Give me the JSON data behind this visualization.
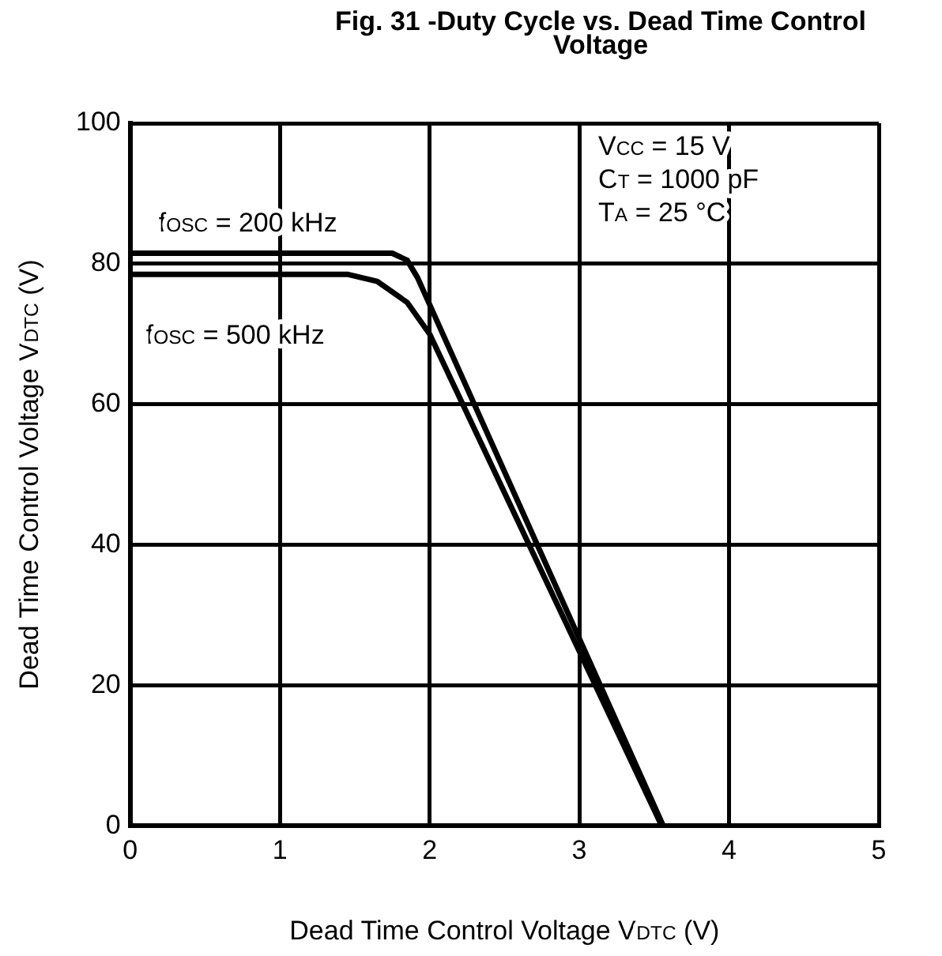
{
  "chart_data": {
    "type": "line",
    "title": "Fig. 31 -Duty Cycle vs. Dead Time Control Voltage",
    "xlabel": "Dead Time Control Voltage V$_{DTC}$ (V)",
    "ylabel": "Dead Time Control Voltage V$_{DTC}$ (V)",
    "series": [
      {
        "name": "f$_{OSC}$ = 200 kHz",
        "color": "#000000",
        "x": [
          0,
          1.75,
          1.85,
          1.92,
          3.56
        ],
        "values": [
          81.5,
          81.5,
          80.5,
          78,
          0
        ]
      },
      {
        "name": "f$_{OSC}$ = 500 kHz",
        "color": "#000000",
        "x": [
          0,
          1.45,
          1.65,
          1.85,
          2.0,
          3.55
        ],
        "values": [
          78.5,
          78.5,
          77.5,
          74.5,
          70,
          0
        ]
      }
    ],
    "annotations": [
      "V$_{CC}$ = 15 V",
      "C$_{T}$ = 1000 pF",
      "T$_{A}$ = 25 °C"
    ],
    "xlim": [
      0,
      5
    ],
    "xticks": [
      0,
      1,
      2,
      3,
      4,
      5
    ],
    "ylim": [
      0,
      100
    ],
    "yticks": [
      0,
      20,
      40,
      60,
      80,
      100
    ],
    "grid": true,
    "marker": "none",
    "line_style": "solid",
    "legend": false
  }
}
